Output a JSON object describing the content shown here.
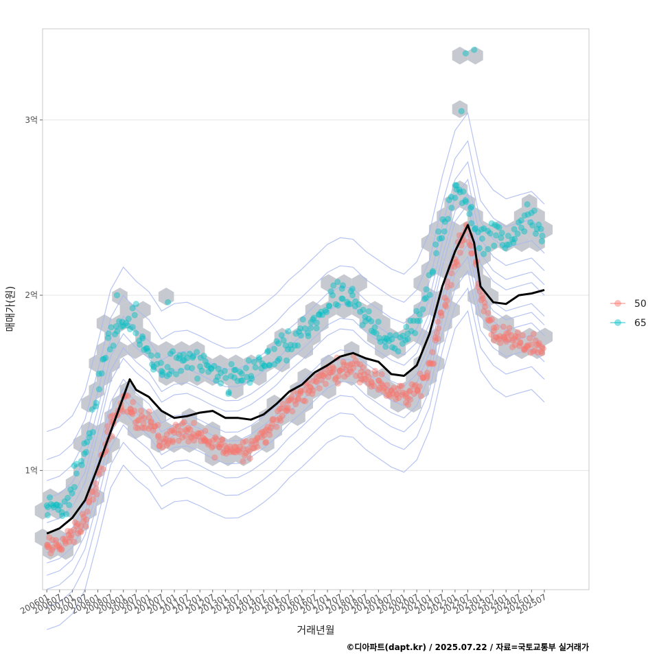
{
  "chart_data": {
    "type": "scatter",
    "xlabel": "거래년월",
    "ylabel": "매매가(원)",
    "caption": "©디아파트(dapt.kr) / 2025.07.22 / 자료=국토교통부 실거래가",
    "x_range": [
      "2005-11",
      "2027-04"
    ],
    "y_range": [
      0.32,
      3.52
    ],
    "y_unit": "억",
    "x_tick_labels": [
      "200601",
      "200607",
      "200701",
      "200707",
      "200801",
      "200807",
      "200901",
      "200907",
      "201001",
      "201007",
      "201101",
      "201107",
      "201201",
      "201207",
      "201301",
      "201307",
      "201401",
      "201407",
      "201501",
      "201507",
      "201601",
      "201607",
      "201701",
      "201707",
      "201801",
      "201807",
      "201901",
      "201907",
      "202001",
      "202007",
      "202101",
      "202107",
      "202201",
      "202207",
      "202301",
      "202307",
      "202401",
      "202407",
      "202501",
      "202507"
    ],
    "y_ticks": [
      {
        "value": 1,
        "label": "1억"
      },
      {
        "value": 2,
        "label": "2억"
      },
      {
        "value": 3,
        "label": "3억"
      }
    ],
    "grid": true,
    "legend_position": "right",
    "series": [
      {
        "name": "50",
        "color": "#f8766d",
        "anchors": [
          [
            "2006-01",
            0.55
          ],
          [
            "2006-07",
            0.58
          ],
          [
            "2007-01",
            0.62
          ],
          [
            "2007-07",
            0.72
          ],
          [
            "2008-01",
            0.95
          ],
          [
            "2008-07",
            1.25
          ],
          [
            "2009-01",
            1.4
          ],
          [
            "2009-07",
            1.3
          ],
          [
            "2010-01",
            1.3
          ],
          [
            "2010-07",
            1.15
          ],
          [
            "2011-01",
            1.22
          ],
          [
            "2011-07",
            1.22
          ],
          [
            "2012-01",
            1.18
          ],
          [
            "2012-07",
            1.15
          ],
          [
            "2013-01",
            1.13
          ],
          [
            "2013-07",
            1.12
          ],
          [
            "2014-01",
            1.14
          ],
          [
            "2014-07",
            1.2
          ],
          [
            "2015-01",
            1.28
          ],
          [
            "2015-07",
            1.38
          ],
          [
            "2016-01",
            1.43
          ],
          [
            "2016-07",
            1.5
          ],
          [
            "2017-01",
            1.55
          ],
          [
            "2017-07",
            1.58
          ],
          [
            "2018-01",
            1.6
          ],
          [
            "2018-07",
            1.55
          ],
          [
            "2019-01",
            1.5
          ],
          [
            "2019-07",
            1.45
          ],
          [
            "2020-01",
            1.42
          ],
          [
            "2020-07",
            1.45
          ],
          [
            "2021-01",
            1.6
          ],
          [
            "2021-07",
            1.9
          ],
          [
            "2022-01",
            2.2
          ],
          [
            "2022-07",
            2.4
          ],
          [
            "2023-01",
            2.0
          ],
          [
            "2023-07",
            1.8
          ],
          [
            "2024-01",
            1.75
          ],
          [
            "2024-07",
            1.72
          ],
          [
            "2025-01",
            1.72
          ],
          [
            "2025-07",
            1.7
          ]
        ]
      },
      {
        "name": "65",
        "color": "#00bfc4",
        "anchors": [
          [
            "2006-01",
            0.78
          ],
          [
            "2006-07",
            0.8
          ],
          [
            "2007-01",
            0.9
          ],
          [
            "2007-07",
            1.1
          ],
          [
            "2008-01",
            1.45
          ],
          [
            "2008-07",
            1.75
          ],
          [
            "2009-01",
            1.85
          ],
          [
            "2009-07",
            1.8
          ],
          [
            "2010-01",
            1.65
          ],
          [
            "2010-07",
            1.6
          ],
          [
            "2011-01",
            1.6
          ],
          [
            "2011-07",
            1.62
          ],
          [
            "2012-01",
            1.6
          ],
          [
            "2012-07",
            1.55
          ],
          [
            "2013-01",
            1.5
          ],
          [
            "2013-07",
            1.52
          ],
          [
            "2014-01",
            1.58
          ],
          [
            "2014-07",
            1.62
          ],
          [
            "2015-01",
            1.65
          ],
          [
            "2015-07",
            1.7
          ],
          [
            "2016-01",
            1.78
          ],
          [
            "2016-07",
            1.85
          ],
          [
            "2017-01",
            1.95
          ],
          [
            "2017-07",
            2.0
          ],
          [
            "2018-01",
            1.95
          ],
          [
            "2018-07",
            1.85
          ],
          [
            "2019-01",
            1.8
          ],
          [
            "2019-07",
            1.75
          ],
          [
            "2020-01",
            1.72
          ],
          [
            "2020-07",
            1.85
          ],
          [
            "2021-01",
            2.05
          ],
          [
            "2021-07",
            2.4
          ],
          [
            "2022-01",
            2.6
          ],
          [
            "2022-07",
            2.55
          ],
          [
            "2023-01",
            2.3
          ],
          [
            "2023-07",
            2.35
          ],
          [
            "2024-01",
            2.3
          ],
          [
            "2024-07",
            2.4
          ],
          [
            "2025-01",
            2.45
          ],
          [
            "2025-07",
            2.3
          ]
        ]
      }
    ],
    "outliers": [
      {
        "series": "65",
        "x": "2022-04",
        "y": 3.05
      },
      {
        "series": "65",
        "x": "2022-06",
        "y": 3.38
      },
      {
        "series": "65",
        "x": "2022-10",
        "y": 3.4
      },
      {
        "series": "65",
        "x": "2006-01",
        "y": 0.8
      },
      {
        "series": "65",
        "x": "2008-10",
        "y": 2.0
      },
      {
        "series": "65",
        "x": "2009-07",
        "y": 1.95
      },
      {
        "series": "65",
        "x": "2010-10",
        "y": 1.96
      }
    ],
    "trend_line": {
      "color": "#000000",
      "points": [
        [
          "2006-01",
          0.64
        ],
        [
          "2006-07",
          0.67
        ],
        [
          "2007-01",
          0.73
        ],
        [
          "2007-07",
          0.83
        ],
        [
          "2008-01",
          1.02
        ],
        [
          "2008-07",
          1.22
        ],
        [
          "2009-01",
          1.42
        ],
        [
          "2009-04",
          1.52
        ],
        [
          "2009-07",
          1.46
        ],
        [
          "2010-01",
          1.42
        ],
        [
          "2010-07",
          1.34
        ],
        [
          "2011-01",
          1.3
        ],
        [
          "2011-07",
          1.31
        ],
        [
          "2012-01",
          1.33
        ],
        [
          "2012-07",
          1.34
        ],
        [
          "2013-01",
          1.3
        ],
        [
          "2013-07",
          1.3
        ],
        [
          "2014-01",
          1.29
        ],
        [
          "2014-07",
          1.32
        ],
        [
          "2015-01",
          1.38
        ],
        [
          "2015-07",
          1.45
        ],
        [
          "2016-01",
          1.49
        ],
        [
          "2016-07",
          1.56
        ],
        [
          "2017-01",
          1.6
        ],
        [
          "2017-07",
          1.65
        ],
        [
          "2018-01",
          1.67
        ],
        [
          "2018-07",
          1.64
        ],
        [
          "2019-01",
          1.62
        ],
        [
          "2019-07",
          1.55
        ],
        [
          "2020-01",
          1.54
        ],
        [
          "2020-07",
          1.6
        ],
        [
          "2021-01",
          1.78
        ],
        [
          "2021-07",
          2.05
        ],
        [
          "2022-01",
          2.25
        ],
        [
          "2022-07",
          2.4
        ],
        [
          "2022-10",
          2.3
        ],
        [
          "2023-01",
          2.05
        ],
        [
          "2023-07",
          1.96
        ],
        [
          "2024-01",
          1.95
        ],
        [
          "2024-07",
          2.0
        ],
        [
          "2025-01",
          2.01
        ],
        [
          "2025-07",
          2.03
        ]
      ]
    }
  }
}
